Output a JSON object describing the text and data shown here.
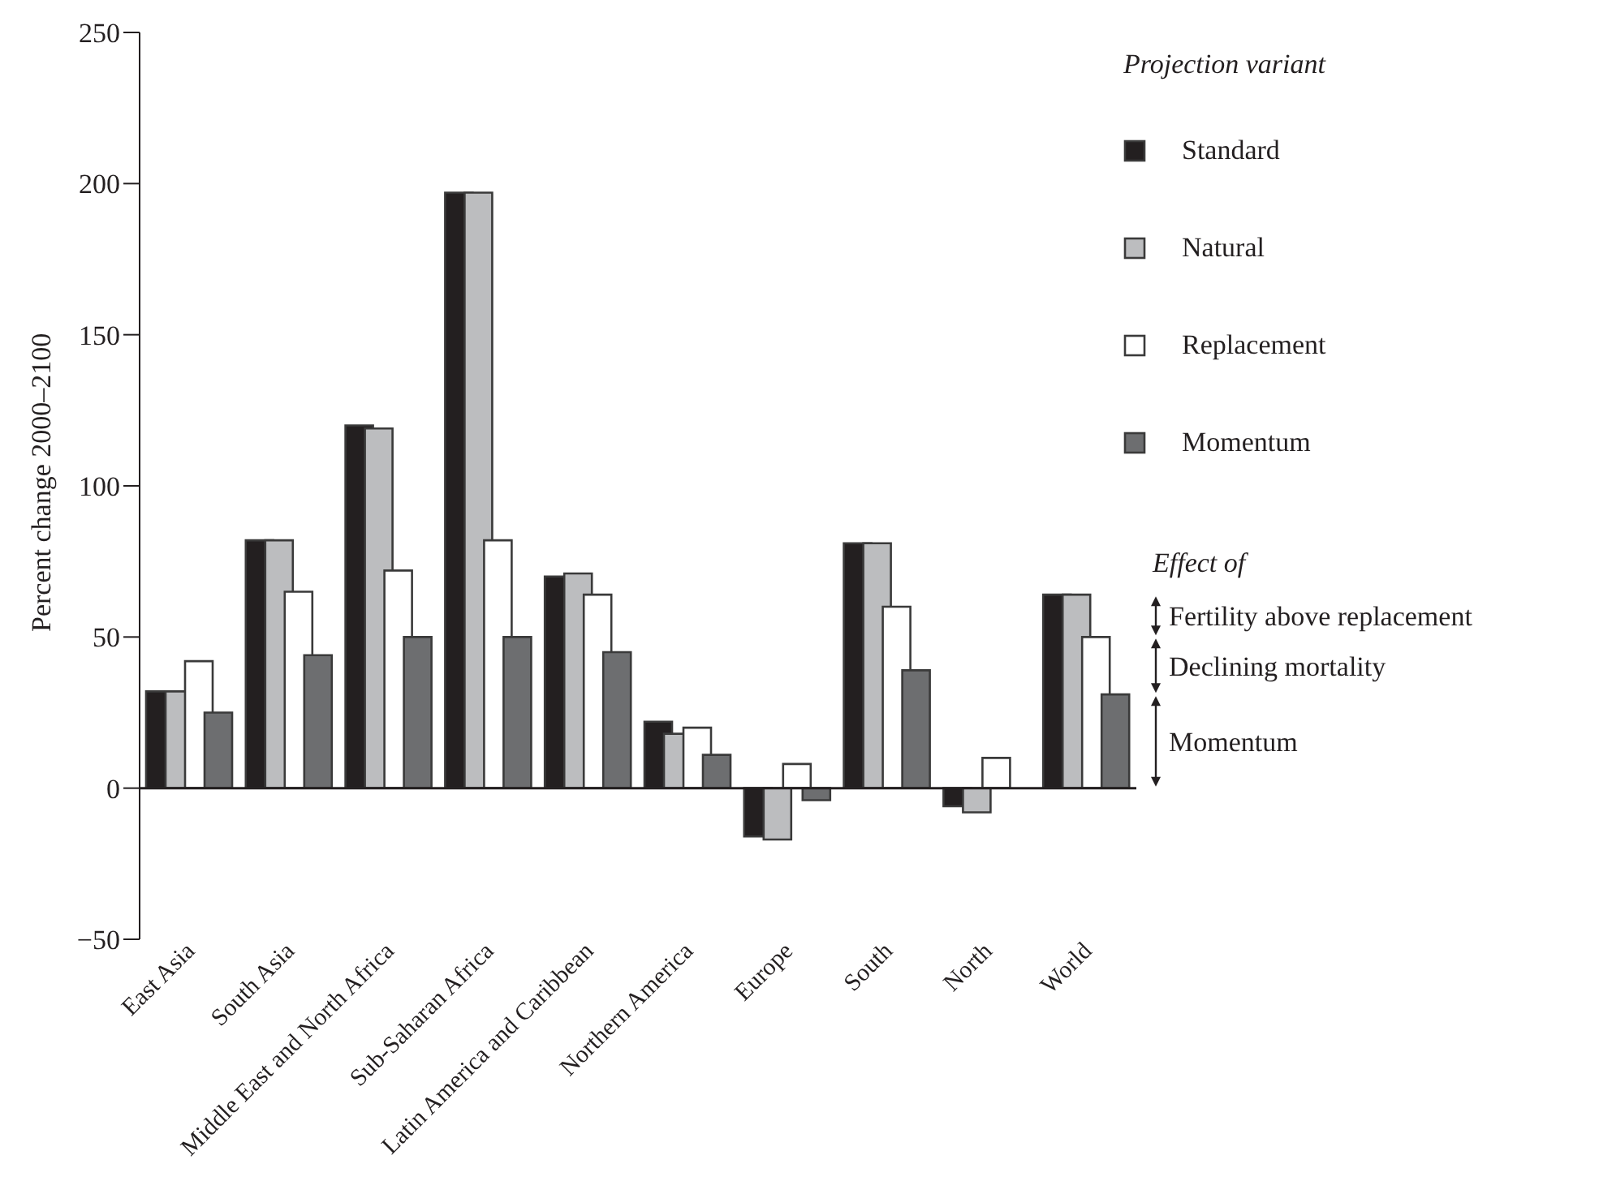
{
  "chart_data": {
    "type": "bar",
    "ylabel": "Percent change 2000–2100",
    "legend_title": "Projection variant",
    "legend": "top right",
    "categories": [
      "East Asia",
      "South Asia",
      "Middle East and North Africa",
      "Sub-Saharan Africa",
      "Latin America and Caribbean",
      "Northern America",
      "Europe",
      "South",
      "North",
      "World"
    ],
    "series": [
      {
        "name": "Standard",
        "color": "#231f20",
        "values": [
          32,
          82,
          120,
          197,
          70,
          22,
          -16,
          81,
          -6,
          64
        ]
      },
      {
        "name": "Natural",
        "color": "#bcbdbf",
        "values": [
          32,
          82,
          119,
          197,
          71,
          18,
          -17,
          81,
          -8,
          64
        ]
      },
      {
        "name": "Replacement",
        "color": "#ffffff",
        "values": [
          42,
          65,
          72,
          82,
          64,
          20,
          8,
          60,
          10,
          50
        ]
      },
      {
        "name": "Momentum",
        "color": "#6d6e70",
        "values": [
          25,
          44,
          50,
          50,
          45,
          11,
          -4,
          39,
          0,
          31
        ]
      }
    ],
    "ylim": [
      -50,
      250
    ],
    "yticks": [
      {
        "value": -50,
        "label": "−50"
      },
      0,
      50,
      100,
      150,
      200,
      250
    ],
    "ref_lines": [
      {
        "axis": "y",
        "value": 0,
        "color": "#231f20"
      }
    ],
    "annotations": [
      "Effect of",
      "Fertility above replacement",
      "Declining mortality",
      "Momentum"
    ]
  }
}
